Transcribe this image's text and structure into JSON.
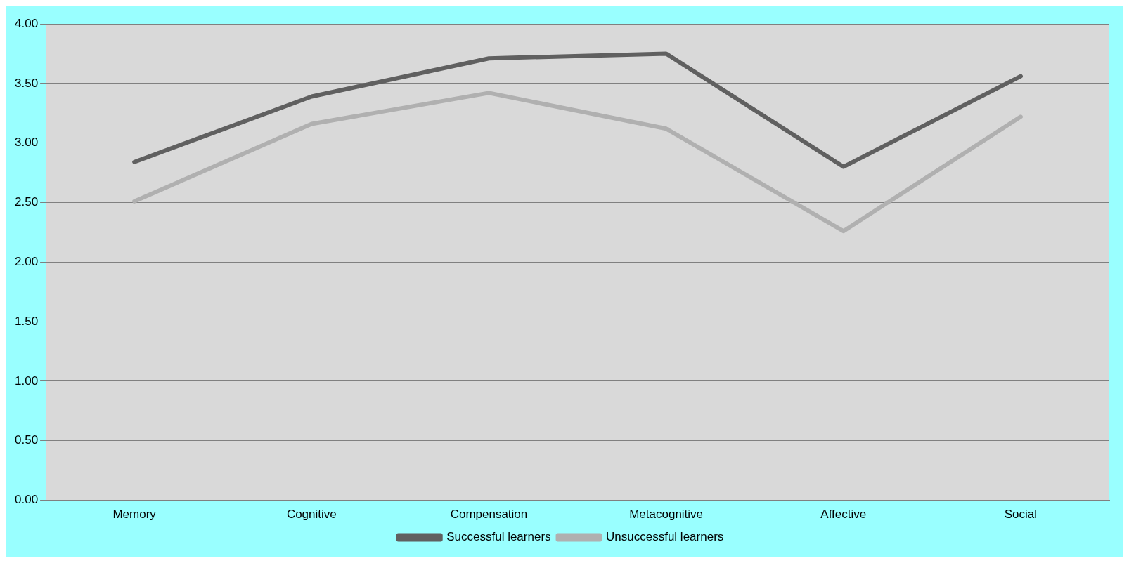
{
  "chart_data": {
    "type": "line",
    "categories": [
      "Memory",
      "Cognitive",
      "Compensation",
      "Metacognitive",
      "Affective",
      "Social"
    ],
    "series": [
      {
        "name": "Successful learners",
        "color": "#606060",
        "values": [
          2.84,
          3.39,
          3.71,
          3.75,
          2.8,
          3.56
        ]
      },
      {
        "name": "Unsuccessful learners",
        "color": "#b0b0b0",
        "values": [
          2.51,
          3.16,
          3.42,
          3.12,
          2.26,
          3.22
        ]
      }
    ],
    "ylim": [
      0,
      4
    ],
    "yticks": [
      {
        "value": 0,
        "label": "0.00"
      },
      {
        "value": 0.5,
        "label": "0.50"
      },
      {
        "value": 1,
        "label": "1.00"
      },
      {
        "value": 1.5,
        "label": "1.50"
      },
      {
        "value": 2,
        "label": "2.00"
      },
      {
        "value": 2.5,
        "label": "2.50"
      },
      {
        "value": 3,
        "label": "3.00"
      },
      {
        "value": 3.5,
        "label": "3.50"
      },
      {
        "value": 4,
        "label": "4.00"
      }
    ],
    "grid": "y",
    "legend": "bottom",
    "marker": "none",
    "line_style": "solid"
  }
}
